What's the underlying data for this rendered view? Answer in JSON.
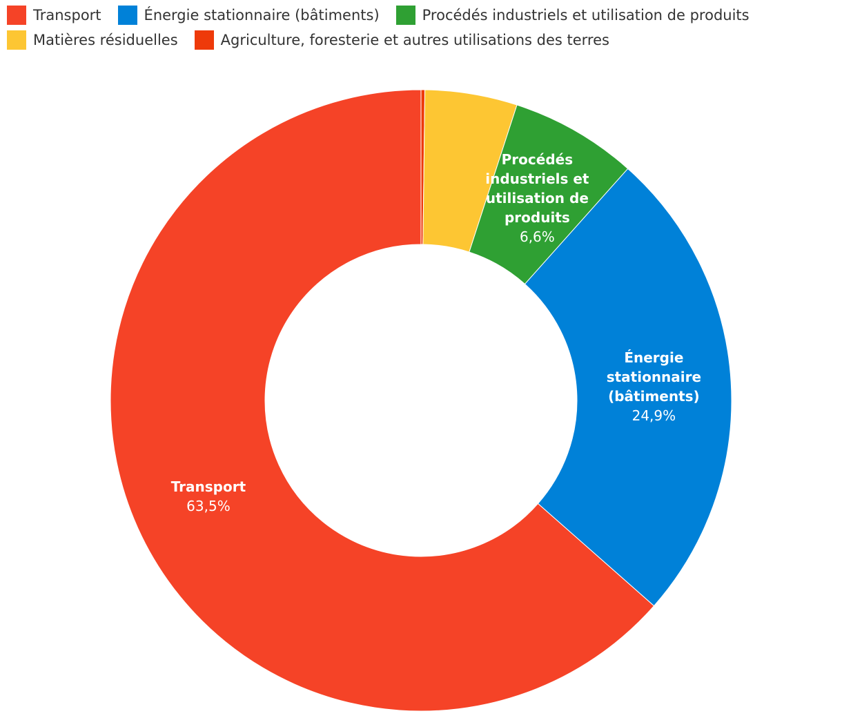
{
  "chart_data": {
    "type": "pie",
    "variant": "donut",
    "legend_position": "top-left",
    "slices": [
      {
        "name": "Transport",
        "value": 63.5,
        "display_value": "63,5%",
        "color": "#f54327",
        "label_lines": [
          "Transport"
        ],
        "show_label": true
      },
      {
        "name": "Énergie stationnaire (bâtiments)",
        "value": 24.9,
        "display_value": "24,9%",
        "color": "#0081d8",
        "label_lines": [
          "Énergie",
          "stationnaire",
          "(bâtiments)"
        ],
        "show_label": true
      },
      {
        "name": "Procédés industriels et utilisation de produits",
        "value": 6.6,
        "display_value": "6,6%",
        "color": "#2fa033",
        "label_lines": [
          "Procédés",
          "industriels et",
          "utilisation de",
          "produits"
        ],
        "show_label": true
      },
      {
        "name": "Matières résiduelles",
        "value": 4.8,
        "display_value": "",
        "color": "#fdc633",
        "label_lines": [],
        "show_label": false
      },
      {
        "name": "Agriculture, foresterie et autres utilisations des terres",
        "value": 0.2,
        "display_value": "",
        "color": "#ee3a0a",
        "label_lines": [],
        "show_label": false
      }
    ],
    "legend_order": [
      0,
      1,
      2,
      3,
      4
    ]
  }
}
